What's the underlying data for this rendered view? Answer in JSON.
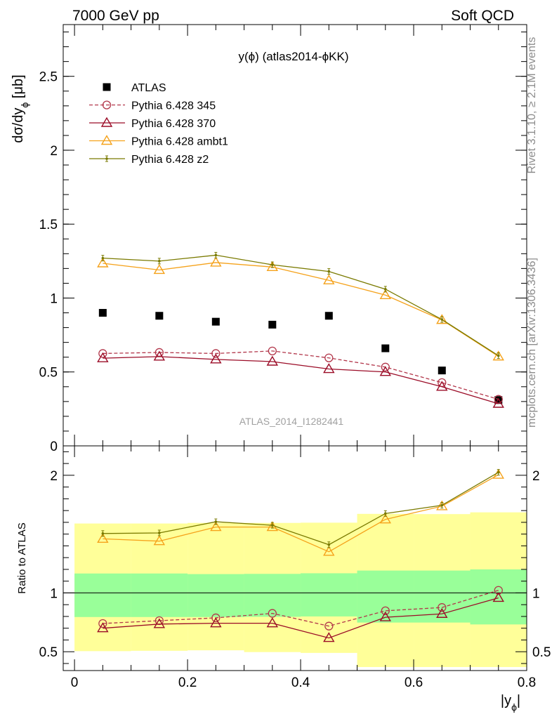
{
  "header": {
    "left": "7000 GeV pp",
    "right": "Soft QCD"
  },
  "side_texts": {
    "rivet": "Rivet 3.1.10, ≥ 2.1M events",
    "mcplots": "mcplots.cern.ch [arXiv:1306.3436]"
  },
  "chart_data": {
    "type": "line",
    "title": "y(ϕ) (atlas2014-ϕKK)",
    "watermark": "ATLAS_2014_I1282441",
    "xlabel": "|y_ϕ|",
    "ylabel": "dσ/dy_ϕ [μb]",
    "xlim": [
      -0.02,
      0.8
    ],
    "ylim": [
      0,
      2.85
    ],
    "x_ticks": [
      "0",
      "0.2",
      "0.4",
      "0.6",
      "0.8"
    ],
    "y_ticks": [
      "0",
      "0.5",
      "1",
      "1.5",
      "2",
      "2.5"
    ],
    "legend_position": "top-left",
    "x": [
      0.05,
      0.15,
      0.25,
      0.35,
      0.45,
      0.55,
      0.65,
      0.75
    ],
    "series": [
      {
        "name": "ATLAS",
        "color": "#000000",
        "marker": "square",
        "values": [
          0.9,
          0.88,
          0.84,
          0.82,
          0.88,
          0.66,
          0.51,
          0.31
        ]
      },
      {
        "name": "Pythia 6.428 345",
        "color": "#b2364a",
        "marker": "open-circle",
        "dashed": true,
        "values": [
          0.625,
          0.632,
          0.625,
          0.642,
          0.595,
          0.533,
          0.428,
          0.315
        ]
      },
      {
        "name": "Pythia 6.428 370",
        "color": "#9b0c27",
        "marker": "open-triangle",
        "values": [
          0.593,
          0.604,
          0.585,
          0.57,
          0.52,
          0.5,
          0.4,
          0.285
        ]
      },
      {
        "name": "Pythia 6.428 ambt1",
        "color": "#f5a21b",
        "marker": "open-triangle",
        "values": [
          1.235,
          1.19,
          1.24,
          1.21,
          1.12,
          1.02,
          0.852,
          0.605
        ]
      },
      {
        "name": "Pythia 6.428 z2",
        "color": "#7a7a00",
        "marker": "dot",
        "values": [
          1.27,
          1.25,
          1.29,
          1.225,
          1.18,
          1.06,
          0.855,
          0.61
        ]
      }
    ],
    "ratio": {
      "ylabel": "Ratio to ATLAS",
      "ylim": [
        0.34,
        2.25
      ],
      "y_ticks": [
        "0.5",
        "1",
        "2"
      ],
      "bins": [
        [
          0,
          0.1
        ],
        [
          0.1,
          0.2
        ],
        [
          0.2,
          0.3
        ],
        [
          0.3,
          0.4
        ],
        [
          0.4,
          0.5
        ],
        [
          0.5,
          0.6
        ],
        [
          0.6,
          0.7
        ],
        [
          0.7,
          0.8
        ]
      ],
      "band_inner": {
        "color": "#99ff99",
        "lo": [
          0.795,
          0.795,
          0.795,
          0.797,
          0.8,
          0.748,
          0.748,
          0.732
        ],
        "hi": [
          1.165,
          1.165,
          1.16,
          1.162,
          1.167,
          1.19,
          1.19,
          1.2
        ]
      },
      "band_outer": {
        "color": "#ffff99",
        "lo": [
          0.505,
          0.508,
          0.512,
          0.497,
          0.49,
          0.37,
          0.37,
          0.37
        ],
        "hi": [
          1.59,
          1.59,
          1.595,
          1.595,
          1.597,
          1.672,
          1.67,
          1.685
        ]
      },
      "series": [
        {
          "name": "Pythia 6.428 345",
          "values": [
            0.74,
            0.764,
            0.788,
            0.826,
            0.718,
            0.848,
            0.876,
            1.022
          ]
        },
        {
          "name": "Pythia 6.428 370",
          "values": [
            0.7,
            0.735,
            0.742,
            0.742,
            0.617,
            0.793,
            0.822,
            0.958
          ]
        },
        {
          "name": "Pythia 6.428 ambt1",
          "values": [
            1.46,
            1.44,
            1.56,
            1.56,
            1.35,
            1.625,
            1.737,
            2.005
          ]
        },
        {
          "name": "Pythia 6.428 z2",
          "values": [
            1.505,
            1.51,
            1.605,
            1.575,
            1.41,
            1.675,
            1.745,
            2.025
          ]
        }
      ]
    }
  }
}
